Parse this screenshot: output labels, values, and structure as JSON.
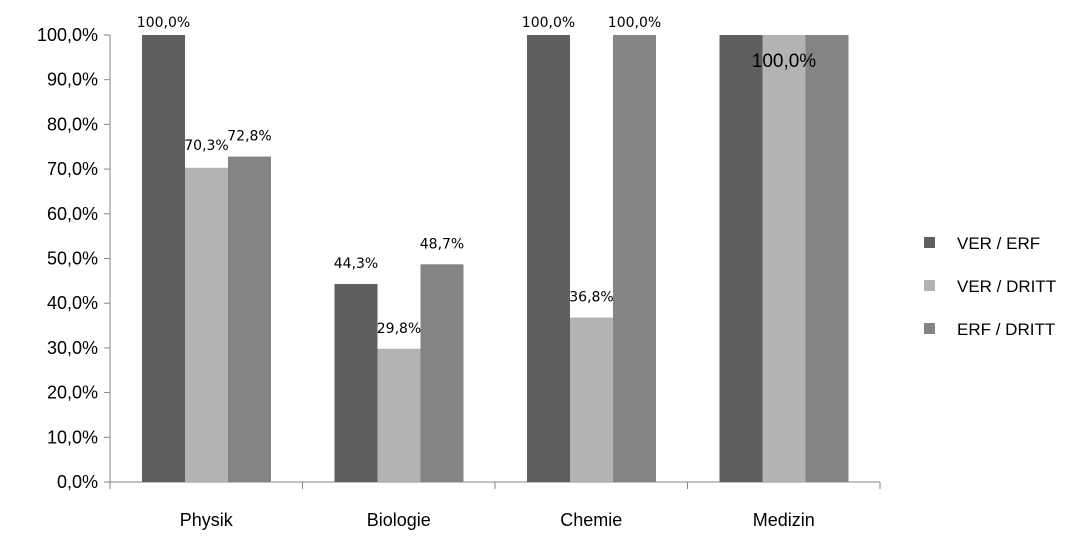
{
  "chart_data": {
    "type": "bar",
    "title": "",
    "xlabel": "",
    "ylabel": "",
    "categories": [
      "Physik",
      "Biologie",
      "Chemie",
      "Medizin"
    ],
    "series": [
      {
        "name": "VER / ERF",
        "color": "#5f5f5f",
        "values": [
          100.0,
          44.3,
          100.0,
          100.0
        ]
      },
      {
        "name": "VER / DRITT",
        "color": "#b3b3b3",
        "values": [
          70.3,
          29.8,
          36.8,
          100.0
        ]
      },
      {
        "name": "ERF / DRITT",
        "color": "#848484",
        "values": [
          72.8,
          48.7,
          100.0,
          100.0
        ]
      }
    ],
    "ylim": [
      0,
      100
    ],
    "yticks": [
      "0,0%",
      "10,0%",
      "20,0%",
      "30,0%",
      "40,0%",
      "50,0%",
      "60,0%",
      "70,0%",
      "80,0%",
      "90,0%",
      "100,0%"
    ],
    "data_labels": [
      {
        "category": "Physik",
        "series": "VER / ERF",
        "text": "100,0%"
      },
      {
        "category": "Physik",
        "series": "VER / DRITT",
        "text": "70,3%"
      },
      {
        "category": "Physik",
        "series": "ERF / DRITT",
        "text": "72,8%"
      },
      {
        "category": "Biologie",
        "series": "VER / ERF",
        "text": "44,3%"
      },
      {
        "category": "Biologie",
        "series": "VER / DRITT",
        "text": "29,8%"
      },
      {
        "category": "Biologie",
        "series": "ERF / DRITT",
        "text": "48,7%"
      },
      {
        "category": "Chemie",
        "series": "VER / ERF",
        "text": "100,0%"
      },
      {
        "category": "Chemie",
        "series": "VER / DRITT",
        "text": "36,8%"
      },
      {
        "category": "Chemie",
        "series": "ERF / DRITT",
        "text": "100,0%"
      },
      {
        "category": "Medizin",
        "series": "VER / DRITT",
        "text": "100,0%"
      }
    ],
    "grid": false,
    "legend_position": "right"
  }
}
